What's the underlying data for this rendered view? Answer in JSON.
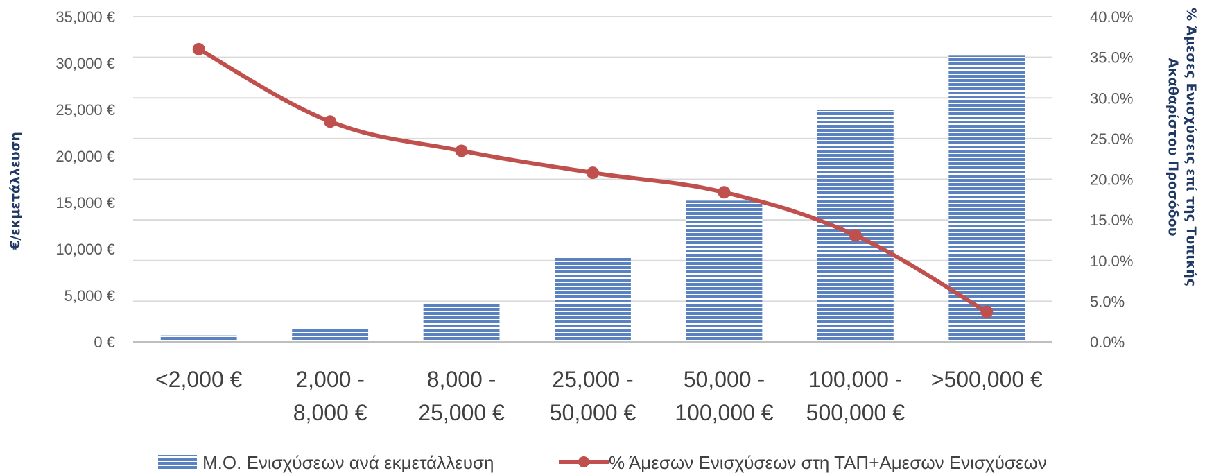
{
  "chart_data": {
    "type": "bar",
    "categories": [
      [
        "<2,000 €"
      ],
      [
        "2,000  -",
        "8,000 €"
      ],
      [
        "8,000  -",
        "25,000 €"
      ],
      [
        "25,000 -",
        "50,000 €"
      ],
      [
        "50,000  -",
        "100,000 €"
      ],
      [
        "100,000  -",
        "500,000 €"
      ],
      [
        ">500,000 €"
      ]
    ],
    "series": [
      {
        "name": "Μ.Ο. Ενισχύσεων ανά εκμετάλλευση",
        "type": "bar",
        "axis": "left",
        "color": "#5b82c0",
        "values": [
          700,
          1500,
          4300,
          9100,
          15200,
          25000,
          30800
        ]
      },
      {
        "name": "% Άμεσων Ενισχύσεων στη ΤΑΠ+Αμεσων Ενισχύσεων",
        "type": "line",
        "axis": "right",
        "color": "#c0504d",
        "values": [
          0.36,
          0.271,
          0.235,
          0.208,
          0.184,
          0.131,
          0.037
        ]
      }
    ],
    "y_left": {
      "label": "€/εκμετάλλευση",
      "ylim": [
        0,
        35000
      ],
      "ticks": [
        "0 €",
        "5,000 €",
        "10,000 €",
        "15,000 €",
        "20,000 €",
        "25,000 €",
        "30,000 €",
        "35,000 €"
      ]
    },
    "y_right": {
      "label_lines": [
        "% Άμεσες Ενισχύσεις επί της Τυπικής",
        "Ακαθαρίστου Προσόδου"
      ],
      "ylim": [
        0,
        0.4
      ],
      "ticks": [
        "0.0%",
        "5.0%",
        "10.0%",
        "15.0%",
        "20.0%",
        "25.0%",
        "30.0%",
        "35.0%",
        "40.0%"
      ]
    },
    "grid": true,
    "legend": "bottom"
  }
}
